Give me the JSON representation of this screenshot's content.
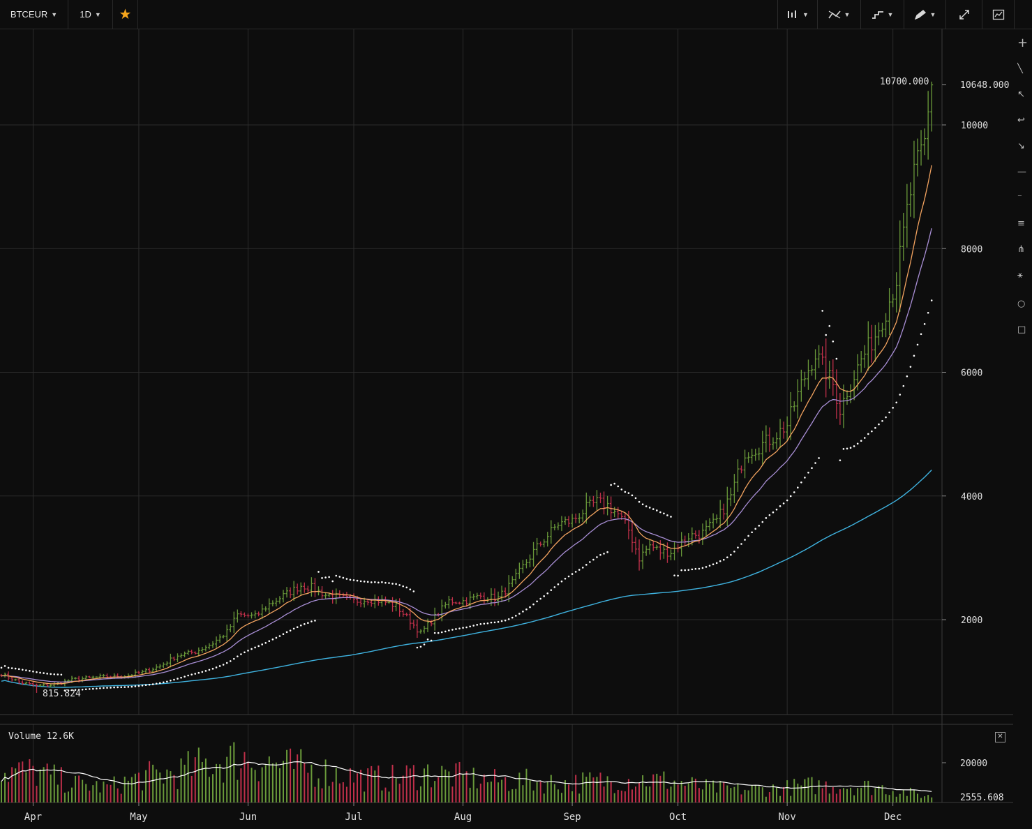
{
  "toolbar": {
    "symbol": "BTCEUR",
    "interval": "1D",
    "favorite_icon": "star-icon",
    "right_tools": [
      "candles-icon",
      "indicators-icon",
      "compare-icon",
      "drawing-icon",
      "fullscreen-icon",
      "screenshot-icon"
    ]
  },
  "side_tools": [
    "crosshair-icon",
    "trendline-icon",
    "arrow-icon",
    "curve-icon",
    "ray-icon",
    "horizontal-line-icon",
    "vertical-line-icon",
    "parallel-channel-icon",
    "pitchfork-icon",
    "fib-icon",
    "circle-icon",
    "rectangle-icon"
  ],
  "labels": {
    "max_price": "10700.000",
    "last_price": "10648.000",
    "min_price": "815.824",
    "volume_label": "Volume 12.6K",
    "volume_last": "2555.608",
    "volume_close": "✕"
  },
  "colors": {
    "up": "#6a9a3a",
    "down": "#c0304a",
    "ema_fast": "#f4a460",
    "ema_mid": "#a98fd6",
    "sma_slow": "#3fb3e0",
    "psar": "#ffffff",
    "grid": "#2c2c2c",
    "background": "#0d0d0d"
  },
  "chart_data": [
    {
      "type": "ohlc",
      "symbol": "BTCEUR",
      "interval": "1D",
      "ylim": [
        500,
        11600
      ],
      "yticks": [
        2000,
        4000,
        6000,
        8000,
        10000
      ],
      "x_months": [
        "Apr",
        "May",
        "Jun",
        "Jul",
        "Aug",
        "Sep",
        "Oct",
        "Nov",
        "Dec"
      ],
      "x_month_days": [
        9,
        39,
        70,
        100,
        131,
        162,
        192,
        223,
        253
      ],
      "close_anchors": [
        {
          "d": 0,
          "v": 1120
        },
        {
          "d": 5,
          "v": 990
        },
        {
          "d": 10,
          "v": 930
        },
        {
          "d": 15,
          "v": 950
        },
        {
          "d": 20,
          "v": 1030
        },
        {
          "d": 25,
          "v": 1060
        },
        {
          "d": 30,
          "v": 1080
        },
        {
          "d": 35,
          "v": 1090
        },
        {
          "d": 40,
          "v": 1150
        },
        {
          "d": 45,
          "v": 1250
        },
        {
          "d": 50,
          "v": 1420
        },
        {
          "d": 55,
          "v": 1480
        },
        {
          "d": 60,
          "v": 1620
        },
        {
          "d": 64,
          "v": 1800
        },
        {
          "d": 67,
          "v": 2080
        },
        {
          "d": 72,
          "v": 2050
        },
        {
          "d": 76,
          "v": 2250
        },
        {
          "d": 81,
          "v": 2420
        },
        {
          "d": 85,
          "v": 2550
        },
        {
          "d": 88,
          "v": 2520
        },
        {
          "d": 92,
          "v": 2400
        },
        {
          "d": 96,
          "v": 2360
        },
        {
          "d": 100,
          "v": 2300
        },
        {
          "d": 104,
          "v": 2330
        },
        {
          "d": 108,
          "v": 2300
        },
        {
          "d": 112,
          "v": 2220
        },
        {
          "d": 116,
          "v": 1980
        },
        {
          "d": 119,
          "v": 1780
        },
        {
          "d": 122,
          "v": 1980
        },
        {
          "d": 127,
          "v": 2300
        },
        {
          "d": 131,
          "v": 2300
        },
        {
          "d": 136,
          "v": 2380
        },
        {
          "d": 141,
          "v": 2350
        },
        {
          "d": 145,
          "v": 2600
        },
        {
          "d": 148,
          "v": 2850
        },
        {
          "d": 151,
          "v": 3100
        },
        {
          "d": 154,
          "v": 3300
        },
        {
          "d": 158,
          "v": 3550
        },
        {
          "d": 162,
          "v": 3600
        },
        {
          "d": 166,
          "v": 3800
        },
        {
          "d": 169,
          "v": 3900
        },
        {
          "d": 172,
          "v": 3850
        },
        {
          "d": 175,
          "v": 3700
        },
        {
          "d": 178,
          "v": 3450
        },
        {
          "d": 181,
          "v": 3000
        },
        {
          "d": 184,
          "v": 3200
        },
        {
          "d": 187,
          "v": 3100
        },
        {
          "d": 190,
          "v": 3100
        },
        {
          "d": 195,
          "v": 3350
        },
        {
          "d": 199,
          "v": 3400
        },
        {
          "d": 203,
          "v": 3600
        },
        {
          "d": 207,
          "v": 4000
        },
        {
          "d": 211,
          "v": 4700
        },
        {
          "d": 215,
          "v": 4800
        },
        {
          "d": 219,
          "v": 4950
        },
        {
          "d": 223,
          "v": 5150
        },
        {
          "d": 227,
          "v": 5800
        },
        {
          "d": 231,
          "v": 6300
        },
        {
          "d": 234,
          "v": 6000
        },
        {
          "d": 236,
          "v": 5800
        },
        {
          "d": 238,
          "v": 5400
        },
        {
          "d": 240,
          "v": 5700
        },
        {
          "d": 244,
          "v": 6200
        },
        {
          "d": 248,
          "v": 6600
        },
        {
          "d": 251,
          "v": 7000
        },
        {
          "d": 254,
          "v": 7500
        },
        {
          "d": 257,
          "v": 8600
        },
        {
          "d": 259,
          "v": 9200
        },
        {
          "d": 262,
          "v": 9700
        },
        {
          "d": 264,
          "v": 10648
        }
      ],
      "min_point": {
        "d": 10,
        "v": 815.824
      },
      "max_point": {
        "d": 264,
        "v": 10700
      },
      "last_close": 10648,
      "indicators": [
        {
          "kind": "ema",
          "period": 10,
          "color": "#f4a460"
        },
        {
          "kind": "ema",
          "period": 21,
          "color": "#a98fd6"
        },
        {
          "kind": "sma",
          "period": 100,
          "color": "#3fb3e0"
        },
        {
          "kind": "psar",
          "color": "#ffffff"
        }
      ]
    },
    {
      "type": "bar",
      "name": "Volume",
      "ylim": [
        0,
        30000
      ],
      "yticks": [
        20000
      ],
      "last_value": 2555.608,
      "volume_anchors": [
        {
          "d": 0,
          "v": 15000
        },
        {
          "d": 10,
          "v": 14000
        },
        {
          "d": 20,
          "v": 9000
        },
        {
          "d": 30,
          "v": 7000
        },
        {
          "d": 40,
          "v": 12000
        },
        {
          "d": 50,
          "v": 14000
        },
        {
          "d": 60,
          "v": 19000
        },
        {
          "d": 70,
          "v": 21000
        },
        {
          "d": 80,
          "v": 17000
        },
        {
          "d": 90,
          "v": 15000
        },
        {
          "d": 100,
          "v": 12000
        },
        {
          "d": 110,
          "v": 11000
        },
        {
          "d": 120,
          "v": 14000
        },
        {
          "d": 130,
          "v": 12000
        },
        {
          "d": 140,
          "v": 10000
        },
        {
          "d": 150,
          "v": 10000
        },
        {
          "d": 160,
          "v": 9000
        },
        {
          "d": 170,
          "v": 10000
        },
        {
          "d": 180,
          "v": 11000
        },
        {
          "d": 190,
          "v": 10000
        },
        {
          "d": 200,
          "v": 7000
        },
        {
          "d": 210,
          "v": 6000
        },
        {
          "d": 220,
          "v": 6500
        },
        {
          "d": 230,
          "v": 8000
        },
        {
          "d": 240,
          "v": 8000
        },
        {
          "d": 250,
          "v": 7000
        },
        {
          "d": 264,
          "v": 2555
        }
      ]
    }
  ]
}
